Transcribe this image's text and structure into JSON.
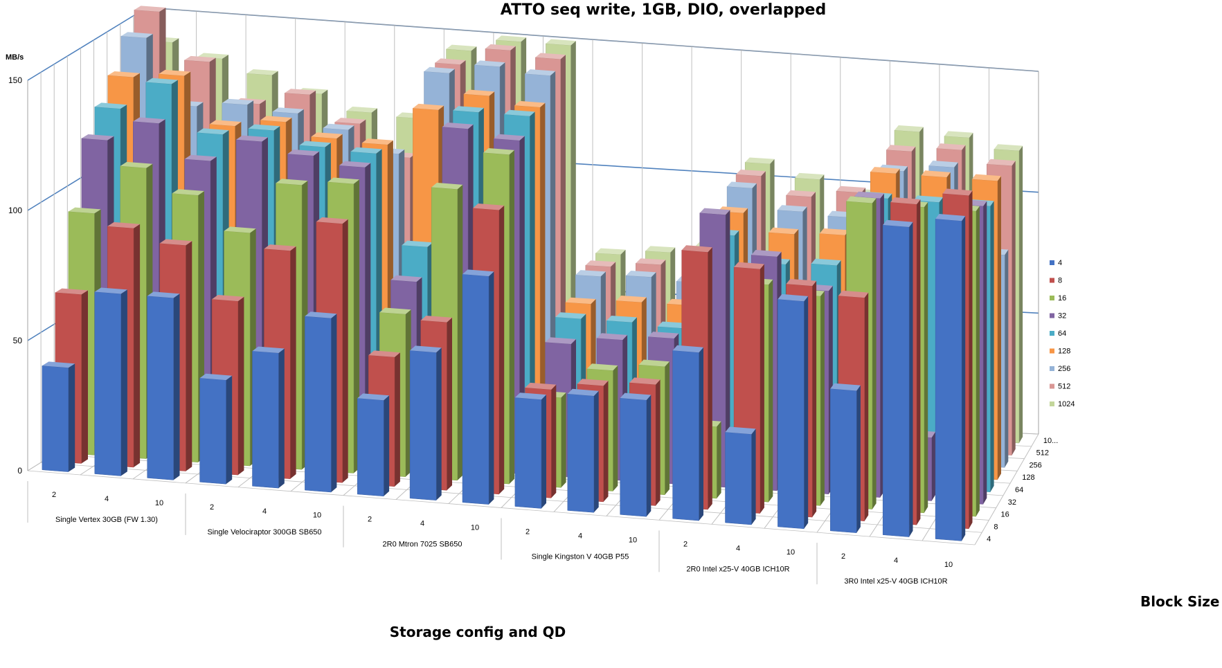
{
  "chart_data": {
    "type": "bar",
    "title": "ATTO seq write, 1GB, DIO, overlapped",
    "ylabel": "MB/s",
    "xlabel": "Storage config and QD",
    "zlabel": "Block Size (KB)",
    "ylim": [
      0,
      150
    ],
    "yticks": [
      "0",
      "50",
      "100",
      "150"
    ],
    "grid": true,
    "legend_position": "right",
    "groups": [
      "Single Vertex 30GB (FW 1.30)",
      "Single Velociraptor 300GB SB650",
      "2R0 Mtron 7025 SB650",
      "Single Kingston V 40GB P55",
      "2R0 Intel x25-V 40GB ICH10R",
      "3R0 Intel x25-V 40GB ICH10R"
    ],
    "qd": [
      "2",
      "4",
      "10"
    ],
    "depth_labels": [
      "4",
      "8",
      "16",
      "32",
      "64",
      "128",
      "256",
      "512",
      "10..."
    ],
    "series": [
      {
        "name": "4",
        "color": "#4472c4",
        "values": [
          40,
          70,
          70,
          40,
          52,
          67,
          37,
          57,
          88,
          42,
          45,
          45,
          65,
          35,
          88,
          55,
          120,
          124
        ]
      },
      {
        "name": "8",
        "color": "#c0504d",
        "values": [
          65,
          92,
          87,
          67,
          88,
          100,
          50,
          65,
          110,
          42,
          45,
          47,
          100,
          95,
          90,
          87,
          125,
          130
        ]
      },
      {
        "name": "16",
        "color": "#9bbb59",
        "values": [
          93,
          112,
          103,
          90,
          110,
          112,
          63,
          113,
          128,
          35,
          47,
          50,
          28,
          85,
          82,
          120,
          120,
          120
        ]
      },
      {
        "name": "32",
        "color": "#8064a2",
        "values": [
          118,
          126,
          113,
          122,
          118,
          115,
          72,
          133,
          130,
          52,
          55,
          57,
          107,
          92,
          80,
          118,
          25,
          118
        ]
      },
      {
        "name": "64",
        "color": "#4bacc6",
        "values": [
          127,
          138,
          120,
          123,
          118,
          117,
          82,
          136,
          136,
          58,
          58,
          57,
          95,
          85,
          86,
          114,
          114,
          114
        ]
      },
      {
        "name": "128",
        "color": "#f79646",
        "values": [
          136,
          138,
          120,
          123,
          118,
          117,
          132,
          139,
          136,
          60,
          62,
          62,
          100,
          93,
          94,
          120,
          120,
          120
        ]
      },
      {
        "name": "256",
        "color": "#95b3d7",
        "values": [
          148,
          123,
          125,
          123,
          118,
          110,
          143,
          147,
          145,
          67,
          68,
          67,
          106,
          98,
          97,
          117,
          120,
          86
        ]
      },
      {
        "name": "512",
        "color": "#d99694",
        "values": [
          155,
          137,
          122,
          127,
          117,
          105,
          143,
          150,
          148,
          67,
          69,
          70,
          107,
          100,
          103,
          121,
          123,
          118
        ]
      },
      {
        "name": "1024",
        "color": "#c3d69b",
        "values": [
          140,
          135,
          130,
          124,
          118,
          117,
          145,
          150,
          150,
          68,
          70,
          73,
          108,
          103,
          98,
          125,
          124,
          120
        ]
      }
    ]
  }
}
